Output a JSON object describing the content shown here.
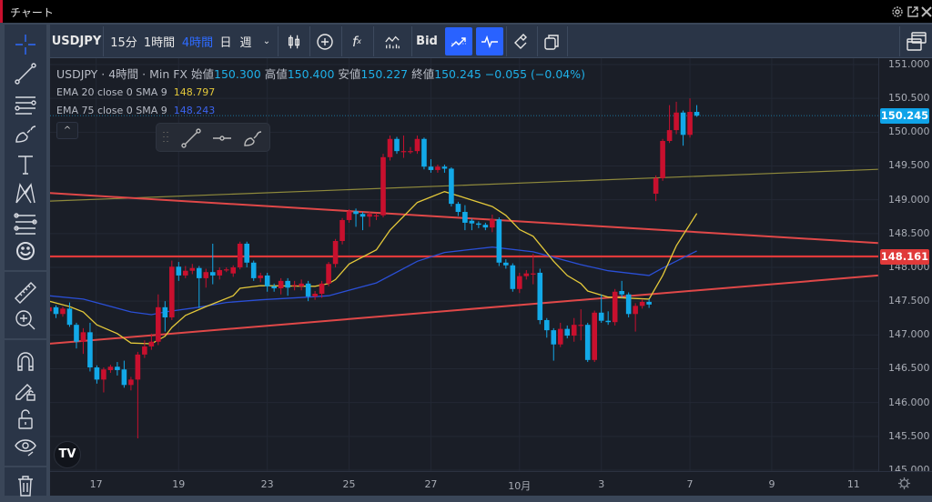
{
  "window": {
    "title": "チャート",
    "icons": [
      "gear-icon",
      "popout-icon",
      "close-icon"
    ]
  },
  "toolbar": {
    "symbol": "USDJPY",
    "intervals": [
      {
        "label": "15分",
        "active": false
      },
      {
        "label": "1時間",
        "active": false
      },
      {
        "label": "4時間",
        "active": true
      },
      {
        "label": "日",
        "active": false
      },
      {
        "label": "週",
        "active": false
      }
    ],
    "price_source": "Bid",
    "active_color": "#2962ff"
  },
  "legend": {
    "symbol": "USDJPY",
    "interval": "4時間",
    "source": "Min FX",
    "open_label": "始値",
    "open": "150.300",
    "high_label": "高値",
    "high": "150.400",
    "low_label": "安値",
    "low": "150.227",
    "close_label": "終値",
    "close": "150.245",
    "change": "−0.055 (−0.04%)",
    "ema1": {
      "label": "EMA 20 close 0 SMA 9",
      "value": "148.797",
      "color": "#e3c83a"
    },
    "ema2": {
      "label": "EMA 75 close 0 SMA 9",
      "value": "148.243",
      "color": "#2a4fd6"
    }
  },
  "collapse_label": "^",
  "logo": "TV",
  "price_labels": {
    "last": "150.245",
    "line": "148.161",
    "last_color": "#0fa3e8",
    "line_color": "#e03a3a"
  },
  "chart_data": {
    "type": "candlestick",
    "up_color": "#c8102e",
    "down_color": "#12a9e8",
    "ylim": [
      144.99,
      151.11
    ],
    "y_ticks": [
      "151.000",
      "150.500",
      "150.000",
      "149.500",
      "149.000",
      "148.500",
      "148.000",
      "147.500",
      "147.000",
      "146.500",
      "146.000",
      "145.500",
      "145.000"
    ],
    "x_ticks": [
      {
        "label": "17",
        "bar": 6.9
      },
      {
        "label": "19",
        "bar": 19
      },
      {
        "label": "23",
        "bar": 32
      },
      {
        "label": "25",
        "bar": 44
      },
      {
        "label": "27",
        "bar": 56
      },
      {
        "label": "10月",
        "bar": 69
      },
      {
        "label": "3",
        "bar": 81
      },
      {
        "label": "7",
        "bar": 94
      },
      {
        "label": "9",
        "bar": 106
      },
      {
        "label": "11",
        "bar": 118
      }
    ],
    "grid": true,
    "ohlc": [
      [
        147.35,
        147.45,
        147.28,
        147.41
      ],
      [
        147.41,
        147.44,
        147.25,
        147.31
      ],
      [
        147.31,
        147.42,
        147.27,
        147.39
      ],
      [
        147.39,
        147.48,
        147.12,
        147.15
      ],
      [
        147.15,
        147.18,
        146.8,
        146.9
      ],
      [
        146.9,
        147.1,
        146.72,
        147.04
      ],
      [
        147.04,
        147.18,
        146.46,
        146.52
      ],
      [
        146.52,
        146.55,
        146.28,
        146.34
      ],
      [
        146.34,
        146.52,
        146.15,
        146.49
      ],
      [
        146.48,
        146.56,
        146.44,
        146.53
      ],
      [
        146.53,
        146.6,
        146.4,
        146.48
      ],
      [
        146.49,
        146.62,
        146.22,
        146.26
      ],
      [
        146.26,
        146.38,
        146.18,
        146.34
      ],
      [
        146.34,
        146.75,
        145.47,
        146.71
      ],
      [
        146.71,
        146.92,
        146.66,
        146.83
      ],
      [
        146.83,
        147.02,
        146.78,
        146.9
      ],
      [
        146.9,
        147.6,
        146.85,
        147.41
      ],
      [
        147.41,
        147.5,
        147.05,
        147.26
      ],
      [
        147.26,
        148.1,
        147.22,
        148.01
      ],
      [
        148.01,
        148.08,
        147.8,
        147.88
      ],
      [
        147.88,
        148.02,
        147.84,
        147.95
      ],
      [
        147.95,
        148.05,
        147.9,
        147.99
      ],
      [
        147.99,
        148.02,
        147.4,
        147.84
      ],
      [
        147.84,
        147.98,
        147.7,
        147.93
      ],
      [
        147.93,
        148.35,
        147.75,
        147.88
      ],
      [
        147.88,
        148.0,
        147.82,
        147.96
      ],
      [
        147.97,
        148.0,
        147.93,
        147.97
      ],
      [
        147.91,
        148.03,
        147.86,
        148.0
      ],
      [
        148.0,
        148.38,
        147.97,
        148.35
      ],
      [
        148.35,
        148.38,
        148.0,
        148.07
      ],
      [
        148.07,
        148.1,
        147.8,
        147.84
      ],
      [
        147.84,
        147.92,
        147.78,
        147.88
      ],
      [
        147.88,
        147.92,
        147.64,
        147.72
      ],
      [
        147.72,
        147.76,
        147.64,
        147.69
      ],
      [
        147.69,
        147.84,
        147.6,
        147.8
      ],
      [
        147.8,
        147.84,
        147.58,
        147.7
      ],
      [
        147.74,
        147.8,
        147.66,
        147.74
      ],
      [
        147.72,
        147.82,
        147.66,
        147.76
      ],
      [
        147.76,
        147.8,
        147.5,
        147.57
      ],
      [
        147.57,
        147.65,
        147.52,
        147.61
      ],
      [
        147.61,
        147.8,
        147.55,
        147.76
      ],
      [
        147.76,
        148.08,
        147.72,
        148.05
      ],
      [
        148.05,
        148.42,
        148.0,
        148.39
      ],
      [
        148.39,
        148.73,
        148.34,
        148.7
      ],
      [
        148.7,
        148.86,
        148.66,
        148.83
      ],
      [
        148.83,
        148.87,
        148.6,
        148.79
      ],
      [
        148.79,
        148.82,
        148.55,
        148.75
      ],
      [
        148.75,
        148.82,
        148.6,
        148.79
      ],
      [
        148.77,
        148.8,
        148.7,
        148.77
      ],
      [
        148.77,
        149.68,
        148.74,
        149.63
      ],
      [
        149.63,
        149.95,
        149.58,
        149.9
      ],
      [
        149.9,
        149.93,
        149.68,
        149.72
      ],
      [
        149.72,
        149.95,
        149.62,
        149.72
      ],
      [
        149.72,
        149.78,
        149.68,
        149.72
      ],
      [
        149.72,
        149.95,
        149.68,
        149.9
      ],
      [
        149.9,
        149.92,
        149.45,
        149.49
      ],
      [
        149.49,
        149.6,
        149.4,
        149.44
      ],
      [
        149.44,
        149.52,
        149.4,
        149.49
      ],
      [
        149.49,
        149.52,
        149.4,
        149.46
      ],
      [
        149.46,
        149.48,
        148.9,
        148.94
      ],
      [
        148.94,
        148.97,
        148.76,
        148.82
      ],
      [
        148.82,
        148.92,
        148.55,
        148.66
      ],
      [
        148.69,
        148.72,
        148.55,
        148.65
      ],
      [
        148.65,
        148.68,
        148.58,
        148.63
      ],
      [
        148.63,
        148.66,
        148.55,
        148.59
      ],
      [
        148.59,
        148.78,
        148.52,
        148.71
      ],
      [
        148.71,
        148.74,
        148.02,
        148.07
      ],
      [
        148.07,
        148.12,
        147.98,
        148.03
      ],
      [
        148.03,
        148.06,
        147.64,
        147.68
      ],
      [
        147.68,
        147.92,
        147.62,
        147.87
      ],
      [
        147.87,
        147.96,
        147.82,
        147.91
      ],
      [
        147.91,
        148.2,
        147.75,
        147.91
      ],
      [
        147.92,
        147.98,
        147.16,
        147.22
      ],
      [
        147.22,
        147.25,
        146.96,
        147.07
      ],
      [
        147.07,
        147.1,
        146.62,
        146.86
      ],
      [
        146.86,
        147.18,
        146.82,
        147.09
      ],
      [
        147.09,
        147.14,
        146.95,
        146.99
      ],
      [
        146.99,
        147.25,
        146.9,
        147.15
      ],
      [
        147.15,
        147.38,
        146.92,
        147.15
      ],
      [
        147.15,
        147.18,
        146.6,
        146.63
      ],
      [
        146.63,
        147.36,
        146.6,
        147.33
      ],
      [
        147.33,
        147.6,
        147.18,
        147.21
      ],
      [
        147.21,
        147.35,
        147.15,
        147.19
      ],
      [
        147.19,
        147.68,
        147.14,
        147.64
      ],
      [
        147.65,
        147.8,
        147.55,
        147.6
      ],
      [
        147.6,
        147.63,
        147.26,
        147.31
      ],
      [
        147.31,
        147.47,
        147.05,
        147.43
      ],
      [
        147.43,
        147.53,
        147.39,
        147.49
      ],
      [
        147.49,
        147.53,
        147.4,
        147.45
      ],
      [
        149.09,
        149.36,
        148.98,
        149.32
      ],
      [
        149.32,
        149.9,
        149.28,
        149.87
      ],
      [
        149.87,
        150.4,
        149.84,
        150.03
      ],
      [
        150.03,
        150.45,
        149.97,
        150.29
      ],
      [
        150.29,
        150.32,
        149.8,
        149.96
      ],
      [
        149.96,
        150.5,
        149.92,
        150.3
      ],
      [
        150.3,
        150.4,
        150.227,
        150.245
      ]
    ],
    "ema20": [
      [
        0,
        147.5
      ],
      [
        3,
        147.42
      ],
      [
        5,
        147.34
      ],
      [
        7,
        147.15
      ],
      [
        10,
        147.02
      ],
      [
        12,
        146.88
      ],
      [
        15,
        146.87
      ],
      [
        17,
        146.98
      ],
      [
        18,
        147.11
      ],
      [
        20,
        147.29
      ],
      [
        23,
        147.42
      ],
      [
        27,
        147.58
      ],
      [
        28,
        147.69
      ],
      [
        31,
        147.73
      ],
      [
        39,
        147.72
      ],
      [
        41,
        147.76
      ],
      [
        42,
        147.82
      ],
      [
        44,
        148.05
      ],
      [
        48,
        148.26
      ],
      [
        50,
        148.55
      ],
      [
        54,
        148.96
      ],
      [
        58,
        149.12
      ],
      [
        60,
        149.06
      ],
      [
        65,
        148.9
      ],
      [
        67,
        148.77
      ],
      [
        69,
        148.56
      ],
      [
        71,
        148.46
      ],
      [
        74,
        148.09
      ],
      [
        76,
        147.88
      ],
      [
        78,
        147.76
      ],
      [
        79,
        147.65
      ],
      [
        82,
        147.56
      ],
      [
        88,
        147.53
      ],
      [
        90,
        147.88
      ],
      [
        92,
        148.32
      ],
      [
        95,
        148.797
      ]
    ],
    "ema75": [
      [
        0,
        147.58
      ],
      [
        5,
        147.53
      ],
      [
        8,
        147.45
      ],
      [
        12,
        147.34
      ],
      [
        15,
        147.3
      ],
      [
        17,
        147.34
      ],
      [
        22,
        147.41
      ],
      [
        26,
        147.48
      ],
      [
        31,
        147.52
      ],
      [
        38,
        147.56
      ],
      [
        41,
        147.58
      ],
      [
        48,
        147.77
      ],
      [
        54,
        148.09
      ],
      [
        58,
        148.22
      ],
      [
        65,
        148.3
      ],
      [
        71,
        148.23
      ],
      [
        78,
        148.04
      ],
      [
        82,
        147.95
      ],
      [
        88,
        147.88
      ],
      [
        90,
        147.99
      ],
      [
        95,
        148.243
      ]
    ],
    "trend_lines": [
      {
        "color": "#8f8a3c",
        "from": [
          0,
          148.98
        ],
        "to": [
          121.6,
          149.45
        ]
      },
      {
        "color": "#e04848",
        "from": [
          0,
          149.1
        ],
        "to": [
          121.6,
          148.36
        ]
      },
      {
        "color": "#e04848",
        "from": [
          0,
          146.87
        ],
        "to": [
          121.6,
          147.88
        ]
      }
    ],
    "horizontal_line": {
      "value": 148.161,
      "color": "#e03a3a"
    },
    "last_price": 150.245
  }
}
